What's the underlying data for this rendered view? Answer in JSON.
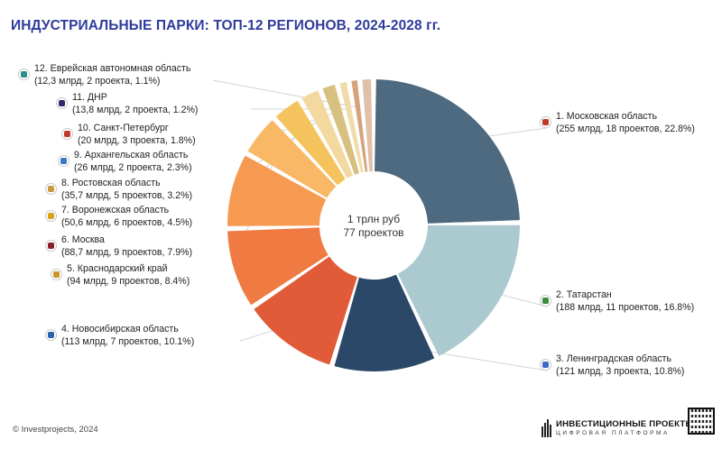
{
  "chart_data": {
    "type": "pie",
    "title": "ИНДУСТРИАЛЬНЫЕ ПАРКИ: ТОП-12 РЕГИОНОВ, 2024-2028 гг.",
    "center_label": {
      "line1": "1 трлн руб",
      "line2": "77 проектов"
    },
    "slices": [
      {
        "rank": 1,
        "name": "1. Московская область",
        "detail": "(255 млрд, 18 проектов, 22.8%)",
        "value": 22.8,
        "color": "#4e6a80",
        "icon": "moscow-region-coat-of-arms-icon"
      },
      {
        "rank": 2,
        "name": "2. Татарстан",
        "detail": "(188 млрд, 11 проектов, 16.8%)",
        "value": 16.8,
        "color": "#abcad0",
        "icon": "tatarstan-coat-of-arms-icon"
      },
      {
        "rank": 3,
        "name": "3. Ленинградская область",
        "detail": "(121 млрд, 3 проекта, 10.8%)",
        "value": 10.8,
        "color": "#2b4868",
        "icon": "leningrad-region-coat-of-arms-icon"
      },
      {
        "rank": 4,
        "name": "4. Новосибирская область",
        "detail": "(113 млрд, 7 проектов, 10.1%)",
        "value": 10.1,
        "color": "#e15b39",
        "icon": "novosibirsk-region-coat-of-arms-icon"
      },
      {
        "rank": 5,
        "name": "5. Краснодарский край",
        "detail": "(94 млрд, 9 проектов, 8.4%)",
        "value": 8.4,
        "color": "#ef7b43",
        "icon": "krasnodar-krai-coat-of-arms-icon"
      },
      {
        "rank": 6,
        "name": "6. Москва",
        "detail": "(88,7 млрд, 9 проектов, 7.9%)",
        "value": 7.9,
        "color": "#f69a52",
        "icon": "moscow-coat-of-arms-icon"
      },
      {
        "rank": 7,
        "name": "7. Воронежская область",
        "detail": "(50,6 млрд, 6 проектов, 4.5%)",
        "value": 4.5,
        "color": "#f9b866",
        "icon": "voronezh-region-coat-of-arms-icon"
      },
      {
        "rank": 8,
        "name": "8. Ростовская область",
        "detail": "(35,7 млрд, 5 проектов, 3.2%)",
        "value": 3.2,
        "color": "#f5c35e",
        "icon": "rostov-region-coat-of-arms-icon"
      },
      {
        "rank": 9,
        "name": "9. Архангельская область",
        "detail": "(26 млрд, 2 проекта, 2.3%)",
        "value": 2.3,
        "color": "#f3d9a0",
        "icon": "arkhangelsk-region-coat-of-arms-icon"
      },
      {
        "rank": 10,
        "name": "10. Санкт-Петербург",
        "detail": "(20 млрд, 3 проекта, 1.8%)",
        "value": 1.8,
        "color": "#d8c080",
        "icon": "saint-petersburg-coat-of-arms-icon"
      },
      {
        "rank": 11,
        "name": "11. ДНР",
        "detail": "(13,8 млрд, 2 проекта, 1.2%)",
        "value": 1.2,
        "color": "#f0dca8",
        "icon": "dpr-coat-of-arms-icon"
      },
      {
        "rank": 12,
        "name": "12. Еврейская автономная область",
        "detail": "(12,3 млрд, 2 проекта, 1.1%)",
        "value": 1.1,
        "color": "#d4a37c",
        "icon": "jewish-autonomous-region-coat-of-arms-icon"
      }
    ],
    "extra_slice": {
      "value": 1.4,
      "color": "#e0c0a8"
    },
    "icon_colors": [
      "#c0392b",
      "#3a8f3a",
      "#3b6bc4",
      "#2a62b0",
      "#c8962a",
      "#8b1e2b",
      "#d9a21b",
      "#c89a3c",
      "#3a78c2",
      "#c0392b",
      "#2b2b6b",
      "#2a8c8c"
    ]
  },
  "footer": {
    "copyright": "© Investprojects, 2024",
    "brand": "ИНВЕСТИЦИОННЫЕ ПРОЕКТЫ",
    "brand_sub": "ЦИФРОВАЯ ПЛАТФОРМА"
  }
}
